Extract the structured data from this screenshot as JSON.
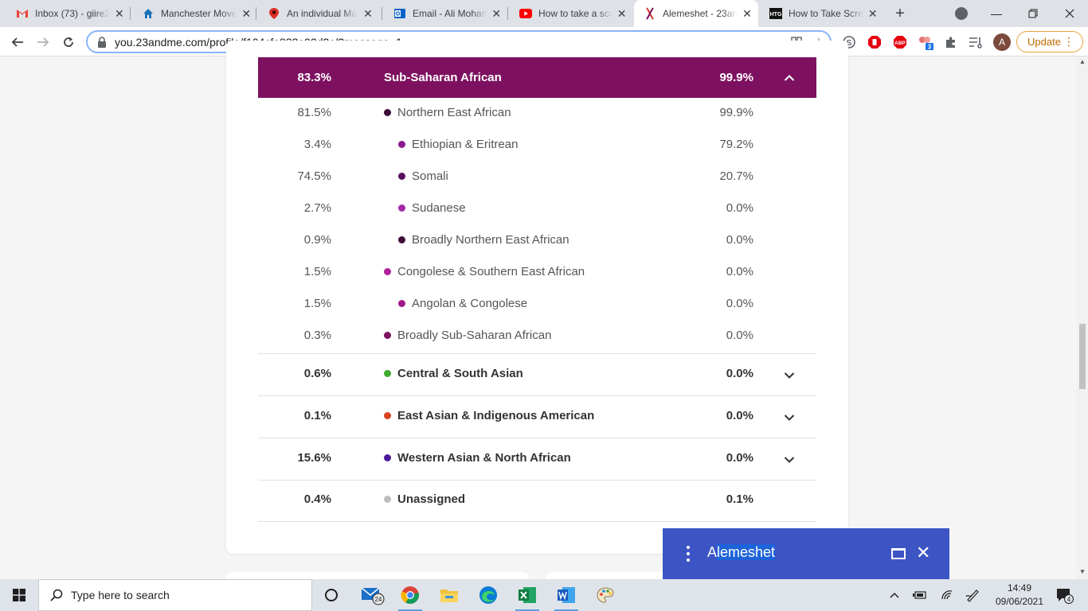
{
  "browser": {
    "tabs": [
      {
        "title": "Inbox (73) - giire2",
        "icon": "gmail-icon"
      },
      {
        "title": "Manchester Move",
        "icon": "home-icon"
      },
      {
        "title": "An individual Ma",
        "icon": "map-pin-icon"
      },
      {
        "title": "Email - Ali Mohan",
        "icon": "outlook-icon"
      },
      {
        "title": "How to take a scr",
        "icon": "youtube-icon"
      },
      {
        "title": "Alemeshet - 23an",
        "icon": "23andme-icon",
        "active": true
      },
      {
        "title": "How to Take Scre",
        "icon": "htg-icon"
      }
    ],
    "url": "you.23andme.com/profile/f104cfa833a92d2c/?message=1",
    "avatar_letter": "A",
    "update_label": "Update",
    "extension_badge": "3"
  },
  "ancestry": {
    "header": {
      "percent": "83.3%",
      "name": "Sub-Saharan African",
      "confidence": "99.9%",
      "color": "#7d1160"
    },
    "subregions": [
      {
        "percent": "81.5%",
        "name": "Northern East African",
        "confidence": "99.9%",
        "dot": "#3d0a36",
        "level": 1
      },
      {
        "percent": "3.4%",
        "name": "Ethiopian & Eritrean",
        "confidence": "79.2%",
        "dot": "#8a1a8f",
        "level": 2
      },
      {
        "percent": "74.5%",
        "name": "Somali",
        "confidence": "20.7%",
        "dot": "#5a0f5e",
        "level": 2
      },
      {
        "percent": "2.7%",
        "name": "Sudanese",
        "confidence": "0.0%",
        "dot": "#a02aa8",
        "level": 2
      },
      {
        "percent": "0.9%",
        "name": "Broadly Northern East African",
        "confidence": "0.0%",
        "dot": "#3d0a36",
        "level": 2
      },
      {
        "percent": "1.5%",
        "name": "Congolese & Southern East African",
        "confidence": "0.0%",
        "dot": "#b0209a",
        "level": 1
      },
      {
        "percent": "1.5%",
        "name": "Angolan & Congolese",
        "confidence": "0.0%",
        "dot": "#a01a8a",
        "level": 2
      },
      {
        "percent": "0.3%",
        "name": "Broadly Sub-Saharan African",
        "confidence": "0.0%",
        "dot": "#7d1160",
        "level": 1
      }
    ],
    "categories": [
      {
        "percent": "0.6%",
        "name": "Central & South Asian",
        "confidence": "0.0%",
        "dot": "#3faa2e",
        "expandable": true
      },
      {
        "percent": "0.1%",
        "name": "East Asian & Indigenous American",
        "confidence": "0.0%",
        "dot": "#d9431e",
        "expandable": true
      },
      {
        "percent": "15.6%",
        "name": "Western Asian & North African",
        "confidence": "0.0%",
        "dot": "#4b1a9a",
        "expandable": true
      },
      {
        "percent": "0.4%",
        "name": "Unassigned",
        "confidence": "0.1%",
        "dot": "#bdbdbd",
        "expandable": false
      }
    ]
  },
  "chat": {
    "name_prefix": "A",
    "name_selected": "lemeshet"
  },
  "taskbar": {
    "search_placeholder": "Type here to search",
    "mail_badge": "24",
    "time": "14:49",
    "date": "09/06/2021",
    "notification_count": "4"
  }
}
